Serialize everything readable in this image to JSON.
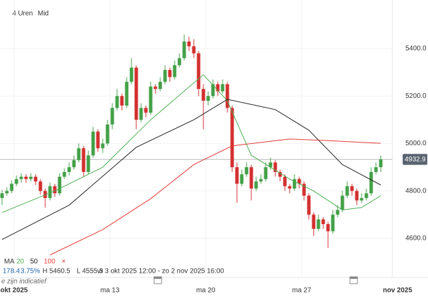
{
  "chart_data": {
    "type": "candlestick",
    "toolbar": [
      "4 Uren",
      "Mid"
    ],
    "ylim": [
      4435,
      5605
    ],
    "yticks": [
      {
        "value": 5400,
        "label": "5400.0"
      },
      {
        "value": 5200,
        "label": "5200.0"
      },
      {
        "value": 5000,
        "label": "5000.0"
      },
      {
        "value": 4800,
        "label": "4800.0"
      },
      {
        "value": 4600,
        "label": "4600.0"
      }
    ],
    "xticks": [
      {
        "value": 2.5,
        "label": "okt 2025"
      },
      {
        "value": 22.5,
        "label": "ma 13"
      },
      {
        "value": 42.5,
        "label": "ma 20"
      },
      {
        "value": 62.5,
        "label": "ma 27"
      },
      {
        "value": 82.5,
        "label": "nov 2025"
      }
    ],
    "grid": true,
    "up_color": "#43a047",
    "down_color": "#d32f2f",
    "last_price": 4932.9,
    "ohlc": [
      [
        4770,
        4805,
        4740,
        4790
      ],
      [
        4790,
        4815,
        4780,
        4800
      ],
      [
        4800,
        4845,
        4790,
        4830
      ],
      [
        4830,
        4865,
        4820,
        4850
      ],
      [
        4850,
        4875,
        4835,
        4860
      ],
      [
        4860,
        4870,
        4835,
        4850
      ],
      [
        4850,
        4875,
        4840,
        4860
      ],
      [
        4860,
        4870,
        4825,
        4840
      ],
      [
        4840,
        4850,
        4785,
        4800
      ],
      [
        4800,
        4810,
        4730,
        4770
      ],
      [
        4770,
        4835,
        4760,
        4820
      ],
      [
        4820,
        4830,
        4775,
        4790
      ],
      [
        4790,
        4875,
        4780,
        4860
      ],
      [
        4860,
        4895,
        4850,
        4880
      ],
      [
        4880,
        4920,
        4865,
        4900
      ],
      [
        4900,
        4950,
        4890,
        4930
      ],
      [
        4930,
        5000,
        4920,
        4980
      ],
      [
        4980,
        4990,
        4860,
        4880
      ],
      [
        4880,
        4970,
        4870,
        4950
      ],
      [
        4950,
        5070,
        4940,
        5050
      ],
      [
        5050,
        5060,
        4965,
        4980
      ],
      [
        4980,
        5020,
        4960,
        5000
      ],
      [
        5000,
        5100,
        4990,
        5080
      ],
      [
        5080,
        5170,
        5060,
        5150
      ],
      [
        5150,
        5230,
        5140,
        5200
      ],
      [
        5200,
        5210,
        5140,
        5160
      ],
      [
        5160,
        5280,
        5150,
        5260
      ],
      [
        5260,
        5360,
        5250,
        5320
      ],
      [
        5320,
        5330,
        5060,
        5100
      ],
      [
        5100,
        5170,
        5090,
        5150
      ],
      [
        5150,
        5160,
        5110,
        5130
      ],
      [
        5130,
        5260,
        5120,
        5240
      ],
      [
        5240,
        5250,
        5210,
        5230
      ],
      [
        5230,
        5280,
        5220,
        5260
      ],
      [
        5260,
        5330,
        5250,
        5310
      ],
      [
        5310,
        5320,
        5260,
        5280
      ],
      [
        5280,
        5350,
        5270,
        5330
      ],
      [
        5330,
        5380,
        5320,
        5360
      ],
      [
        5360,
        5460,
        5350,
        5430
      ],
      [
        5430,
        5450,
        5390,
        5410
      ],
      [
        5410,
        5440,
        5360,
        5380
      ],
      [
        5380,
        5390,
        5200,
        5230
      ],
      [
        5230,
        5250,
        5060,
        5180
      ],
      [
        5180,
        5220,
        5160,
        5200
      ],
      [
        5200,
        5270,
        5190,
        5250
      ],
      [
        5250,
        5260,
        5200,
        5220
      ],
      [
        5220,
        5270,
        5210,
        5250
      ],
      [
        5250,
        5260,
        5130,
        5150
      ],
      [
        5150,
        5160,
        4880,
        4900
      ],
      [
        4900,
        4920,
        4750,
        4830
      ],
      [
        4830,
        4890,
        4820,
        4870
      ],
      [
        4870,
        4920,
        4860,
        4900
      ],
      [
        4900,
        4910,
        4760,
        4810
      ],
      [
        4810,
        4860,
        4800,
        4840
      ],
      [
        4840,
        4870,
        4830,
        4850
      ],
      [
        4850,
        4920,
        4840,
        4900
      ],
      [
        4900,
        4940,
        4890,
        4920
      ],
      [
        4920,
        4930,
        4860,
        4880
      ],
      [
        4880,
        4890,
        4840,
        4860
      ],
      [
        4860,
        4870,
        4800,
        4820
      ],
      [
        4820,
        4830,
        4790,
        4810
      ],
      [
        4810,
        4870,
        4800,
        4850
      ],
      [
        4850,
        4860,
        4810,
        4830
      ],
      [
        4830,
        4840,
        4760,
        4780
      ],
      [
        4780,
        4790,
        4680,
        4700
      ],
      [
        4700,
        4710,
        4610,
        4640
      ],
      [
        4640,
        4700,
        4630,
        4680
      ],
      [
        4680,
        4690,
        4640,
        4660
      ],
      [
        4660,
        4670,
        4560,
        4630
      ],
      [
        4630,
        4720,
        4620,
        4700
      ],
      [
        4700,
        4740,
        4690,
        4720
      ],
      [
        4720,
        4800,
        4710,
        4780
      ],
      [
        4780,
        4840,
        4770,
        4820
      ],
      [
        4820,
        4830,
        4780,
        4800
      ],
      [
        4800,
        4810,
        4740,
        4760
      ],
      [
        4760,
        4790,
        4750,
        4770
      ],
      [
        4770,
        4810,
        4760,
        4790
      ],
      [
        4790,
        4900,
        4780,
        4880
      ],
      [
        4880,
        4920,
        4870,
        4900
      ],
      [
        4900,
        4950,
        4880,
        4933
      ]
    ],
    "ma_label": "MA",
    "series": [
      {
        "name": "20",
        "color": "#4caf50",
        "x": [
          0,
          11,
          21,
          31,
          42,
          47,
          52,
          60,
          65,
          71,
          75,
          79
        ],
        "values": [
          4709,
          4800,
          4900,
          5100,
          5290,
          5180,
          4950,
          4850,
          4800,
          4720,
          4730,
          4780
        ]
      },
      {
        "name": "50",
        "color": "#222222",
        "x": [
          0,
          14,
          28,
          40,
          47,
          57,
          64,
          71,
          79
        ],
        "values": [
          4595,
          4740,
          4984,
          5100,
          5186,
          5143,
          5056,
          4911,
          4825
        ]
      },
      {
        "name": "100",
        "color": "#e53935",
        "x": [
          10,
          21,
          31,
          40,
          48,
          60,
          67,
          79
        ],
        "values": [
          4530,
          4637,
          4767,
          4911,
          4990,
          5019,
          5013,
          5001
        ]
      }
    ],
    "close_icon": "×",
    "stats": [
      "178.4",
      "3.75%",
      "H 5460.5",
      "L 4555.5"
    ],
    "range_text": "vr 3 okt 2025 12:00 - zo 2 nov 2025 16:00",
    "note": "e zijn indicatief"
  }
}
